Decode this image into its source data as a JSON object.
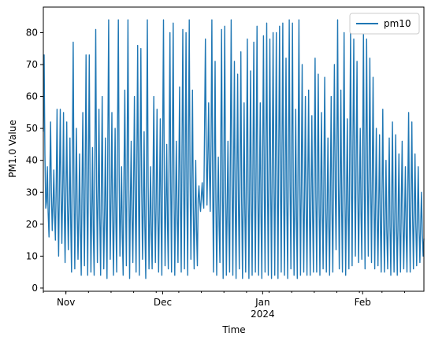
{
  "chart_data": {
    "type": "line",
    "title": "",
    "xlabel": "Time",
    "ylabel": "PM1.0 Value",
    "x_range": [
      "2023-10-25",
      "2024-02-20"
    ],
    "ylim": [
      -1,
      88
    ],
    "grid": false,
    "legend_position": "top-right",
    "x_ticks": [
      {
        "date": "2023-11-01",
        "label": "Nov",
        "sublabel": ""
      },
      {
        "date": "2023-12-01",
        "label": "Dec",
        "sublabel": ""
      },
      {
        "date": "2024-01-01",
        "label": "Jan",
        "sublabel": "2024"
      },
      {
        "date": "2024-02-01",
        "label": "Feb",
        "sublabel": ""
      }
    ],
    "y_ticks": [
      0,
      10,
      20,
      30,
      40,
      50,
      60,
      70,
      80
    ],
    "series": [
      {
        "name": "pm10",
        "color": "#1f77b4",
        "x": [
          "2023-10-25",
          "2023-10-26",
          "2023-10-27",
          "2023-10-28",
          "2023-10-29",
          "2023-10-30",
          "2023-10-31",
          "2023-11-01",
          "2023-11-02",
          "2023-11-03",
          "2023-11-04",
          "2023-11-05",
          "2023-11-06",
          "2023-11-07",
          "2023-11-08",
          "2023-11-09",
          "2023-11-10",
          "2023-11-11",
          "2023-11-12",
          "2023-11-13",
          "2023-11-14",
          "2023-11-15",
          "2023-11-16",
          "2023-11-17",
          "2023-11-18",
          "2023-11-19",
          "2023-11-20",
          "2023-11-21",
          "2023-11-22",
          "2023-11-23",
          "2023-11-24",
          "2023-11-25",
          "2023-11-26",
          "2023-11-27",
          "2023-11-28",
          "2023-11-29",
          "2023-11-30",
          "2023-12-01",
          "2023-12-02",
          "2023-12-03",
          "2023-12-04",
          "2023-12-05",
          "2023-12-06",
          "2023-12-07",
          "2023-12-08",
          "2023-12-09",
          "2023-12-10",
          "2023-12-11",
          "2023-12-12",
          "2023-12-13",
          "2023-12-14",
          "2023-12-15",
          "2023-12-16",
          "2023-12-17",
          "2023-12-18",
          "2023-12-19",
          "2023-12-20",
          "2023-12-21",
          "2023-12-22",
          "2023-12-23",
          "2023-12-24",
          "2023-12-25",
          "2023-12-26",
          "2023-12-27",
          "2023-12-28",
          "2023-12-29",
          "2023-12-30",
          "2023-12-31",
          "2024-01-01",
          "2024-01-02",
          "2024-01-03",
          "2024-01-04",
          "2024-01-05",
          "2024-01-06",
          "2024-01-07",
          "2024-01-08",
          "2024-01-09",
          "2024-01-10",
          "2024-01-11",
          "2024-01-12",
          "2024-01-13",
          "2024-01-14",
          "2024-01-15",
          "2024-01-16",
          "2024-01-17",
          "2024-01-18",
          "2024-01-19",
          "2024-01-20",
          "2024-01-21",
          "2024-01-22",
          "2024-01-23",
          "2024-01-24",
          "2024-01-25",
          "2024-01-26",
          "2024-01-27",
          "2024-01-28",
          "2024-01-29",
          "2024-01-30",
          "2024-01-31",
          "2024-02-01",
          "2024-02-02",
          "2024-02-03",
          "2024-02-04",
          "2024-02-05",
          "2024-02-06",
          "2024-02-07",
          "2024-02-08",
          "2024-02-09",
          "2024-02-10",
          "2024-02-11",
          "2024-02-12",
          "2024-02-13",
          "2024-02-14",
          "2024-02-15",
          "2024-02-16",
          "2024-02-17",
          "2024-02-18",
          "2024-02-19",
          "2024-02-20"
        ],
        "daily_min": [
          25,
          16,
          18,
          15,
          10,
          14,
          8,
          12,
          5,
          6,
          9,
          4,
          7,
          4,
          5,
          4,
          8,
          4,
          6,
          3,
          9,
          4,
          5,
          10,
          4,
          7,
          3,
          8,
          5,
          4,
          9,
          3,
          6,
          6,
          8,
          5,
          4,
          7,
          6,
          5,
          4,
          8,
          5,
          6,
          4,
          9,
          6,
          7,
          24,
          25,
          26,
          24,
          5,
          4,
          8,
          3,
          4,
          5,
          4,
          3,
          6,
          3,
          5,
          3,
          4,
          5,
          4,
          3,
          5,
          4,
          3,
          4,
          3,
          5,
          4,
          3,
          6,
          4,
          3,
          4,
          5,
          4,
          4,
          5,
          5,
          4,
          6,
          5,
          4,
          5,
          12,
          6,
          5,
          4,
          6,
          7,
          10,
          8,
          9,
          6,
          10,
          8,
          6,
          7,
          5,
          5,
          6,
          4,
          5,
          4,
          5,
          6,
          5,
          5,
          6,
          7,
          8,
          10,
          11
        ],
        "daily_max": [
          73,
          38,
          52,
          37,
          56,
          56,
          55,
          52,
          47,
          77,
          50,
          42,
          55,
          73,
          73,
          44,
          81,
          56,
          60,
          47,
          84,
          55,
          50,
          84,
          38,
          62,
          84,
          46,
          60,
          76,
          75,
          49,
          84,
          38,
          60,
          56,
          53,
          84,
          45,
          80,
          83,
          46,
          63,
          81,
          80,
          84,
          62,
          40,
          32,
          33,
          78,
          58,
          84,
          71,
          41,
          81,
          82,
          46,
          84,
          71,
          67,
          74,
          58,
          78,
          68,
          77,
          82,
          58,
          79,
          83,
          78,
          80,
          80,
          82,
          83,
          72,
          84,
          83,
          56,
          84,
          70,
          60,
          62,
          54,
          72,
          67,
          55,
          66,
          47,
          60,
          70,
          84,
          62,
          80,
          53,
          80,
          78,
          71,
          50,
          80,
          78,
          72,
          66,
          50,
          48,
          56,
          40,
          47,
          52,
          48,
          42,
          46,
          38,
          55,
          52,
          42,
          38,
          30,
          20
        ]
      }
    ]
  },
  "legend": {
    "entries": [
      "pm10"
    ]
  }
}
